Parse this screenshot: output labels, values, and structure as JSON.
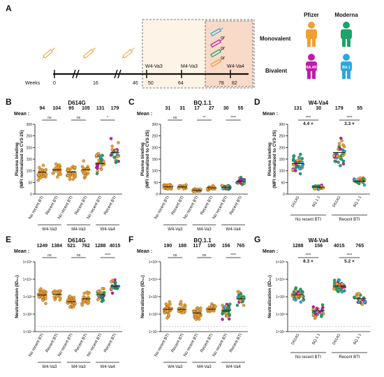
{
  "panel_a": {
    "letter": "A",
    "weeks_label": "Weeks",
    "week_numbers": [
      "0",
      "16",
      "46"
    ],
    "visits": [
      {
        "name": "W4-Va3",
        "week": "50"
      },
      {
        "name": "M4-Va3",
        "week": "64"
      },
      {
        "name": "W4-Va4",
        "week": "82"
      }
    ],
    "week_78": "78",
    "or_labels": [
      "or",
      "or",
      "or"
    ],
    "vaccines": {
      "pfizer": "Pfizer",
      "moderna": "Moderna"
    },
    "rows": {
      "monovalent": "Monovalent",
      "bivalent": "Bivalent"
    },
    "bivalent_badges": [
      "BA.4/5",
      "BA.1"
    ],
    "colors": {
      "pfizer_mono": "#f0a030",
      "moderna_mono": "#1aa36a",
      "pfizer_bi": "#c21aaa",
      "moderna_bi": "#2aa8e0",
      "shade": "#fbe8d6"
    }
  },
  "panels": {
    "B": {
      "letter": "B",
      "title": "D614G",
      "ylabel1": "Plasma binding",
      "ylabel2": "(MFI normalized to CV3-25)",
      "mean_label": "Mean :",
      "means": [
        "94",
        "104",
        "95",
        "105",
        "131",
        "179"
      ],
      "sig": [
        "ns",
        "ns",
        "*"
      ],
      "yticks": [
        "0",
        "50",
        "100",
        "150",
        "200",
        "250",
        "300"
      ]
    },
    "C": {
      "letter": "C",
      "title": "BQ.1.1",
      "ylabel1": "Plasma binding",
      "ylabel2": "(MFI normalized to CV3-25)",
      "mean_label": "Mean :",
      "means": [
        "31",
        "31",
        "17",
        "27",
        "30",
        "55"
      ],
      "sig": [
        "ns",
        "**",
        "****"
      ],
      "yticks": [
        "0",
        "50",
        "100",
        "150",
        "200",
        "250",
        "300"
      ]
    },
    "D": {
      "letter": "D",
      "title": "W4-Va4",
      "ylabel1": "Plasma binding",
      "ylabel2": "(MFI normalized to CV3-25)",
      "mean_label": "Mean :",
      "means": [
        "131",
        "30",
        "179",
        "55"
      ],
      "sig": [
        "****",
        "****"
      ],
      "fold": [
        "4.4 ×",
        "3.3 ×"
      ],
      "yticks": [
        "0",
        "50",
        "100",
        "150",
        "200",
        "250",
        "300"
      ]
    },
    "E": {
      "letter": "E",
      "title": "D614G",
      "ylabel1": "Neutralization (ID₅₀)",
      "mean_label": "Mean :",
      "means": [
        "1249",
        "1384",
        "521",
        "762",
        "1288",
        "4015"
      ],
      "sig": [
        "ns",
        "ns",
        "****"
      ],
      "yticks": [
        "1×10¹",
        "1×10²",
        "1×10³",
        "1×10⁴",
        "1×10⁵"
      ]
    },
    "F": {
      "letter": "F",
      "title": "BQ.1.1",
      "ylabel1": "Neutralization (ID₅₀)",
      "mean_label": "Mean :",
      "means": [
        "190",
        "188",
        "117",
        "190",
        "156",
        "765"
      ],
      "sig": [
        "ns",
        "ns",
        "****"
      ],
      "yticks": [
        "1×10¹",
        "1×10²",
        "1×10³",
        "1×10⁴",
        "1×10⁵"
      ]
    },
    "G": {
      "letter": "G",
      "title": "W4-Va4",
      "ylabel1": "Neutralization (ID₅₀)",
      "mean_label": "Mean :",
      "means": [
        "1288",
        "156",
        "4015",
        "765"
      ],
      "sig": [
        "****",
        "****"
      ],
      "fold": [
        "8.3 ×",
        "5.2 ×"
      ],
      "yticks": [
        "1×10¹",
        "1×10²",
        "1×10³",
        "1×10⁴",
        "1×10⁵"
      ]
    }
  },
  "x_labels": {
    "three_group": [
      "No recent BTI",
      "Recent BTI"
    ],
    "groups": [
      "W4-Va3",
      "M4-Va3",
      "W4-Va4"
    ],
    "strain_ticks": [
      "D614G",
      "BQ.1.1"
    ],
    "bti_groups": [
      "No recent BTI",
      "Recent BTI"
    ]
  },
  "chart_data": [
    {
      "panel": "B",
      "type": "scatter",
      "title": "D614G",
      "ylabel": "Plasma binding (MFI normalized to CV3-25)",
      "ylim": [
        0,
        300
      ],
      "categories": [
        "W4-Va3 No recent BTI",
        "W4-Va3 Recent BTI",
        "M4-Va3 No recent BTI",
        "M4-Va3 Recent BTI",
        "W4-Va4 No recent BTI",
        "W4-Va4 Recent BTI"
      ],
      "means": [
        94,
        104,
        95,
        105,
        131,
        179
      ],
      "significance": [
        "ns",
        "ns",
        "*"
      ]
    },
    {
      "panel": "C",
      "type": "scatter",
      "title": "BQ.1.1",
      "ylabel": "Plasma binding (MFI normalized to CV3-25)",
      "ylim": [
        0,
        300
      ],
      "categories": [
        "W4-Va3 No recent BTI",
        "W4-Va3 Recent BTI",
        "M4-Va3 No recent BTI",
        "M4-Va3 Recent BTI",
        "W4-Va4 No recent BTI",
        "W4-Va4 Recent BTI"
      ],
      "means": [
        31,
        31,
        17,
        27,
        30,
        55
      ],
      "significance": [
        "ns",
        "**",
        "****"
      ]
    },
    {
      "panel": "D",
      "type": "scatter",
      "title": "W4-Va4",
      "ylabel": "Plasma binding (MFI normalized to CV3-25)",
      "ylim": [
        0,
        300
      ],
      "categories": [
        "No recent BTI D614G",
        "No recent BTI BQ.1.1",
        "Recent BTI D614G",
        "Recent BTI BQ.1.1"
      ],
      "means": [
        131,
        30,
        179,
        55
      ],
      "significance": [
        "****",
        "****"
      ],
      "fold_change": [
        "4.4 ×",
        "3.3 ×"
      ]
    },
    {
      "panel": "E",
      "type": "scatter",
      "title": "D614G",
      "ylabel": "Neutralization (ID50)",
      "scale": "log",
      "ylim": [
        10,
        100000
      ],
      "categories": [
        "W4-Va3 No recent BTI",
        "W4-Va3 Recent BTI",
        "M4-Va3 No recent BTI",
        "M4-Va3 Recent BTI",
        "W4-Va4 No recent BTI",
        "W4-Va4 Recent BTI"
      ],
      "means": [
        1249,
        1384,
        521,
        762,
        1288,
        4015
      ],
      "significance": [
        "ns",
        "ns",
        "****"
      ]
    },
    {
      "panel": "F",
      "type": "scatter",
      "title": "BQ.1.1",
      "ylabel": "Neutralization (ID50)",
      "scale": "log",
      "ylim": [
        10,
        100000
      ],
      "categories": [
        "W4-Va3 No recent BTI",
        "W4-Va3 Recent BTI",
        "M4-Va3 No recent BTI",
        "M4-Va3 Recent BTI",
        "W4-Va4 No recent BTI",
        "W4-Va4 Recent BTI"
      ],
      "means": [
        190,
        188,
        117,
        190,
        156,
        765
      ],
      "significance": [
        "ns",
        "ns",
        "****"
      ]
    },
    {
      "panel": "G",
      "type": "scatter",
      "title": "W4-Va4",
      "ylabel": "Neutralization (ID50)",
      "scale": "log",
      "ylim": [
        10,
        100000
      ],
      "categories": [
        "No recent BTI D614G",
        "No recent BTI BQ.1.1",
        "Recent BTI D614G",
        "Recent BTI BQ.1.1"
      ],
      "means": [
        1288,
        156,
        4015,
        765
      ],
      "significance": [
        "****",
        "****"
      ],
      "fold_change": [
        "8.3 ×",
        "5.2 ×"
      ]
    }
  ]
}
